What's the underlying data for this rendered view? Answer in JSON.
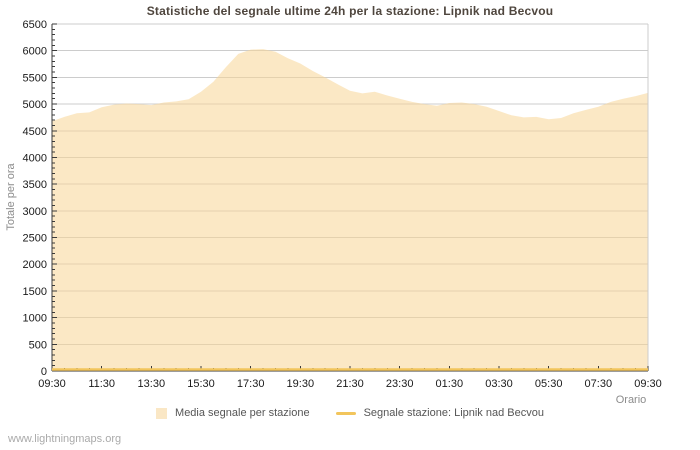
{
  "page": {
    "footer_link": "www.lightningmaps.org"
  },
  "chart_data": {
    "type": "area",
    "title": "Statistiche del segnale ultime 24h per la stazione: Lipnik nad Becvou",
    "xlabel": "Orario",
    "ylabel": "Totale per ora",
    "ylim": [
      0,
      6500
    ],
    "y_tick_step": 500,
    "y_minor_tick_step": 100,
    "grid": true,
    "legend_position": "bottom",
    "x_interval_minutes": 30,
    "x_minor_per_major": 4,
    "x_labels": [
      "09:30",
      "11:30",
      "13:30",
      "15:30",
      "17:30",
      "19:30",
      "21:30",
      "23:30",
      "01:30",
      "03:30",
      "05:30",
      "07:30",
      "09:30"
    ],
    "x_times": [
      "09:30",
      "10:00",
      "10:30",
      "11:00",
      "11:30",
      "12:00",
      "12:30",
      "13:00",
      "13:30",
      "14:00",
      "14:30",
      "15:00",
      "15:30",
      "16:00",
      "16:30",
      "17:00",
      "17:30",
      "18:00",
      "18:30",
      "19:00",
      "19:30",
      "20:00",
      "20:30",
      "21:00",
      "21:30",
      "22:00",
      "22:30",
      "23:00",
      "23:30",
      "00:00",
      "00:30",
      "01:00",
      "01:30",
      "02:00",
      "02:30",
      "03:00",
      "03:30",
      "04:00",
      "04:30",
      "05:00",
      "05:30",
      "06:00",
      "06:30",
      "07:00",
      "07:30",
      "08:00",
      "08:30",
      "09:00",
      "09:30"
    ],
    "series": [
      {
        "name": "Media segnale per stazione",
        "style": "area",
        "values": [
          4680,
          4760,
          4830,
          4845,
          4940,
          4990,
          5010,
          5000,
          4980,
          5030,
          5050,
          5090,
          5230,
          5420,
          5690,
          5940,
          6020,
          6030,
          5980,
          5860,
          5760,
          5620,
          5500,
          5370,
          5250,
          5200,
          5230,
          5160,
          5100,
          5040,
          5000,
          4970,
          5020,
          5030,
          5000,
          4950,
          4870,
          4790,
          4750,
          4760,
          4715,
          4740,
          4830,
          4890,
          4950,
          5040,
          5100,
          5150,
          5210
        ]
      },
      {
        "name": "Segnale stazione: Lipnik nad Becvou",
        "style": "line",
        "values": [
          0,
          0,
          0,
          0,
          0,
          0,
          0,
          0,
          0,
          0,
          0,
          0,
          0,
          0,
          0,
          0,
          0,
          0,
          0,
          0,
          0,
          0,
          0,
          0,
          0,
          0,
          0,
          0,
          0,
          0,
          0,
          0,
          0,
          0,
          0,
          0,
          0,
          0,
          0,
          0,
          0,
          0,
          0,
          0,
          0,
          0,
          0,
          0,
          0
        ]
      }
    ],
    "colors": {
      "title": "#4F463E",
      "grid": "#CCCCCC",
      "axis": "#3A3A3A",
      "tick_label": "#1A1A1A",
      "area_fill": "#F7D596",
      "area_opacity": 0.55,
      "legend_area_swatch": "#FAE7C5",
      "station_line": "#F2C55C",
      "muted_label": "#8C8C8C",
      "legend_text": "#555555",
      "footer": "#AAAAAA"
    }
  }
}
